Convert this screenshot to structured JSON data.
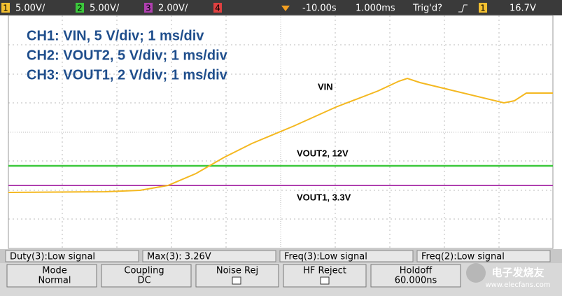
{
  "status_bar": {
    "ch1_label": "1",
    "ch1_scale": "5.00V/",
    "ch2_label": "2",
    "ch2_scale": "5.00V/",
    "ch3_label": "3",
    "ch3_scale": "2.00V/",
    "ch4_label": "4",
    "delay": "-10.00s",
    "timebase": "1.000ms",
    "trigger_state": "Trig'd?",
    "trigger_source": "1",
    "trigger_level": "16.7V"
  },
  "annotations": {
    "lines": [
      "CH1: VIN, 5 V/div; 1 ms/div",
      "CH2: VOUT2, 5 V/div; 1 ms/div",
      "CH3: VOUT1, 2 V/div; 1 ms/div"
    ],
    "vin": "VIN",
    "vout2": "VOUT2, 12V",
    "vout1": "VOUT1, 3.3V"
  },
  "measurements": [
    "Duty(3):Low signal",
    "Max(3): 3.26V",
    "Freq(3):Low signal",
    "Freq(2):Low signal"
  ],
  "softkeys": [
    {
      "title": "Mode",
      "value": "Normal"
    },
    {
      "title": "Coupling",
      "value": "DC"
    },
    {
      "title": "Noise Rej"
    },
    {
      "title": "HF Reject"
    },
    {
      "title": "Holdoff",
      "value": "60.000ns"
    }
  ],
  "watermark": {
    "name": "电子发烧友",
    "url": "www.elecfans.com"
  }
}
